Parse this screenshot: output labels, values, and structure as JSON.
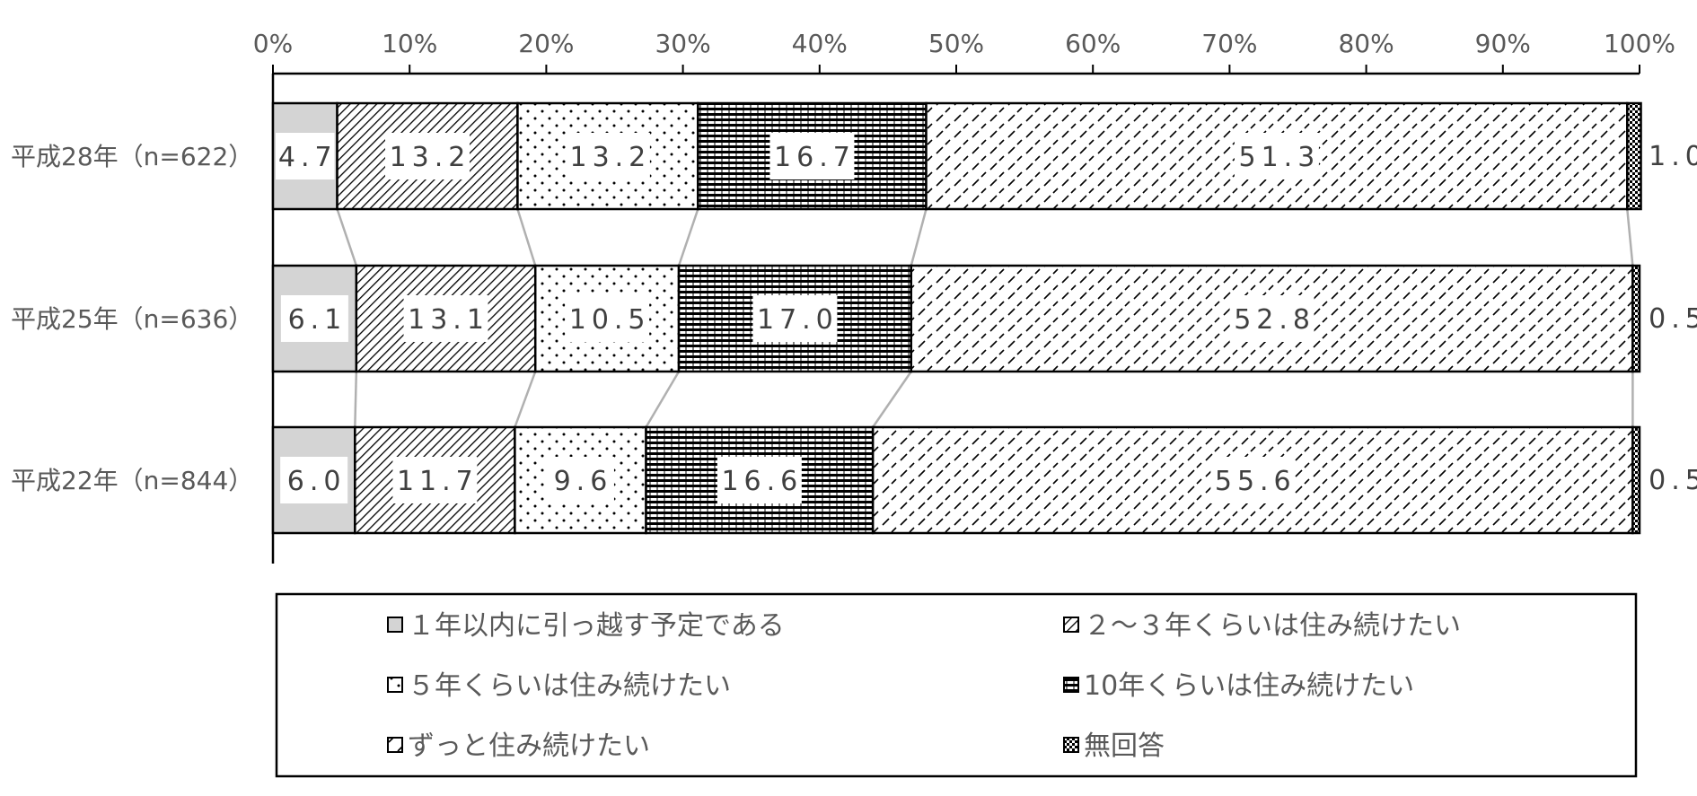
{
  "chart_data": {
    "type": "bar",
    "orientation": "horizontal",
    "stacked": "percent",
    "xlim": [
      0,
      100
    ],
    "x_ticks": [
      "0%",
      "10%",
      "20%",
      "30%",
      "40%",
      "50%",
      "60%",
      "70%",
      "80%",
      "90%",
      "100%"
    ],
    "categories": [
      "平成28年（n=622）",
      "平成25年（n=636）",
      "平成22年（n=844）"
    ],
    "series": [
      {
        "name": "１年以内に引っ越す予定である",
        "values": [
          4.7,
          6.1,
          6.0
        ],
        "labels": [
          "4.7",
          "6.1",
          "6.0"
        ]
      },
      {
        "name": "２～３年くらいは住み続けたい",
        "values": [
          13.2,
          13.1,
          11.7
        ],
        "labels": [
          "13.2",
          "13.1",
          "11.7"
        ]
      },
      {
        "name": "５年くらいは住み続けたい",
        "values": [
          13.2,
          10.5,
          9.6
        ],
        "labels": [
          "13.2",
          "10.5",
          "9.6"
        ]
      },
      {
        "name": "10年くらいは住み続けたい",
        "values": [
          16.7,
          17.0,
          16.6
        ],
        "labels": [
          "16.7",
          "17.0",
          "16.6"
        ]
      },
      {
        "name": "ずっと住み続けたい",
        "values": [
          51.3,
          52.8,
          55.6
        ],
        "labels": [
          "51.3",
          "52.8",
          "55.6"
        ]
      },
      {
        "name": "無回答",
        "values": [
          1.0,
          0.5,
          0.5
        ],
        "labels": [
          "1.0",
          "0.5",
          "0.5"
        ]
      }
    ],
    "legend_position": "bottom",
    "series_connector_lines": true
  }
}
